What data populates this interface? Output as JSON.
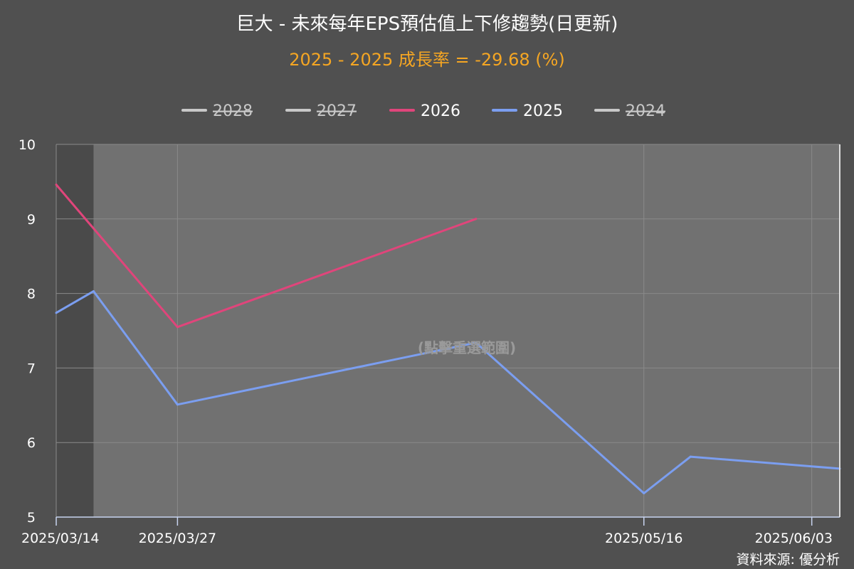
{
  "title": "巨大 - 未來每年EPS預估值上下修趨勢(日更新)",
  "subtitle": "2025 - 2025 成長率 = -29.68 (%)",
  "overlay_text": "(點擊重選範圍)",
  "source": "資料來源: 優分析",
  "colors": {
    "background": "#505050",
    "plot_selected": "#717171",
    "plot_unselected": "#4a4a4a",
    "grid": "#8a8a8a",
    "title": "#ffffff",
    "subtitle": "#f5a623",
    "axis_text": "#ffffff",
    "series_2026": "#e0457b",
    "series_2025": "#7b9ef0",
    "legend_hidden": "#c8c8c8"
  },
  "legend": [
    {
      "label": "2028",
      "hidden": true
    },
    {
      "label": "2027",
      "hidden": true
    },
    {
      "label": "2026",
      "hidden": false
    },
    {
      "label": "2025",
      "hidden": false
    },
    {
      "label": "2024",
      "hidden": true
    }
  ],
  "chart_data": {
    "type": "line",
    "title": "巨大 - 未來每年EPS預估值上下修趨勢(日更新)",
    "subtitle": "2025 - 2025 成長率 = -29.68 (%)",
    "x_type": "date",
    "xlim": [
      "2025-03-14",
      "2025-06-06"
    ],
    "ylim": [
      5,
      10
    ],
    "y_ticks": [
      5,
      6,
      7,
      8,
      9,
      10
    ],
    "x_tick_labels": [
      {
        "date": "2025-03-14",
        "label": "2025/03/14"
      },
      {
        "date": "2025-03-27",
        "label": "2025/03/27"
      },
      {
        "date": "2025-05-16",
        "label": "2025/05/16"
      },
      {
        "date": "2025-06-03",
        "label": "2025/06/03"
      }
    ],
    "grid": true,
    "legend_position": "top",
    "selected_range": [
      "2025-03-18",
      "2025-06-06"
    ],
    "series": [
      {
        "name": "2026",
        "points": [
          {
            "x": "2025-03-14",
            "y": 9.46
          },
          {
            "x": "2025-03-27",
            "y": 7.55
          },
          {
            "x": "2025-04-28",
            "y": 9.0
          }
        ]
      },
      {
        "name": "2025",
        "points": [
          {
            "x": "2025-03-14",
            "y": 7.74
          },
          {
            "x": "2025-03-18",
            "y": 8.03
          },
          {
            "x": "2025-03-27",
            "y": 6.51
          },
          {
            "x": "2025-04-28",
            "y": 7.34
          },
          {
            "x": "2025-05-16",
            "y": 5.32
          },
          {
            "x": "2025-05-21",
            "y": 5.81
          },
          {
            "x": "2025-06-06",
            "y": 5.65
          }
        ]
      }
    ]
  }
}
